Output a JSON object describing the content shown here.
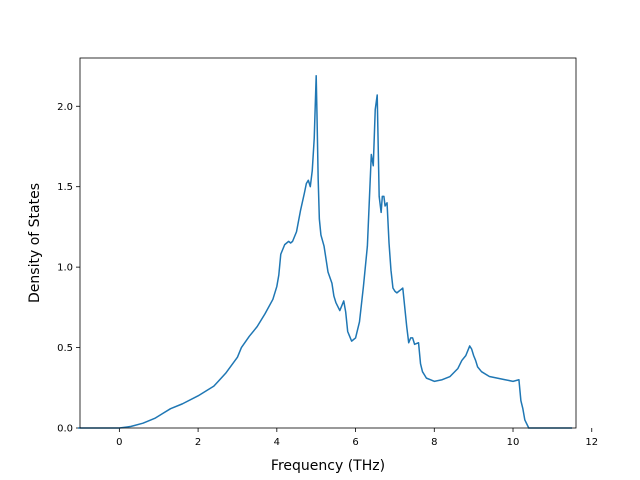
{
  "chart_data": {
    "type": "line",
    "title": "",
    "xlabel": "Frequency (THz)",
    "ylabel": "Density of States",
    "xlim": [
      -1.0,
      11.6
    ],
    "ylim": [
      0.0,
      2.3
    ],
    "xticks": [
      0,
      2,
      4,
      6,
      8,
      10,
      12
    ],
    "xtick_labels": [
      "0",
      "2",
      "4",
      "6",
      "8",
      "10",
      "12"
    ],
    "yticks": [
      0.0,
      0.5,
      1.0,
      1.5,
      2.0
    ],
    "ytick_labels": [
      "0.0",
      "0.5",
      "1.0",
      "1.5",
      "2.0"
    ],
    "grid": false,
    "legend": "none",
    "color": "#1f77b4",
    "series": [
      {
        "x": [
          -1.05,
          0.0,
          0.3,
          0.6,
          0.9,
          1.1,
          1.3,
          1.6,
          2.0,
          2.4,
          2.7,
          3.0,
          3.1,
          3.3,
          3.5,
          3.7,
          3.9,
          4.0,
          4.05,
          4.1,
          4.2,
          4.3,
          4.35,
          4.4,
          4.5,
          4.6,
          4.7,
          4.75,
          4.8,
          4.85,
          4.9,
          4.95,
          5.0,
          5.02,
          5.05,
          5.08,
          5.12,
          5.2,
          5.3,
          5.4,
          5.45,
          5.5,
          5.6,
          5.7,
          5.75,
          5.8,
          5.85,
          5.9,
          6.0,
          6.1,
          6.2,
          6.3,
          6.4,
          6.45,
          6.5,
          6.55,
          6.6,
          6.65,
          6.68,
          6.72,
          6.75,
          6.8,
          6.85,
          6.9,
          6.95,
          7.0,
          7.05,
          7.1,
          7.15,
          7.2,
          7.3,
          7.35,
          7.4,
          7.45,
          7.5,
          7.6,
          7.65,
          7.7,
          7.75,
          7.8,
          7.9,
          8.0,
          8.2,
          8.4,
          8.6,
          8.7,
          8.8,
          8.9,
          8.95,
          9.0,
          9.05,
          9.1,
          9.2,
          9.4,
          9.6,
          9.8,
          10.0,
          10.15,
          10.2,
          10.25,
          10.3,
          10.4,
          10.45,
          10.5,
          10.6,
          10.8,
          11.0,
          11.5
        ],
        "y": [
          0.0,
          0.0,
          0.01,
          0.03,
          0.06,
          0.09,
          0.12,
          0.15,
          0.2,
          0.26,
          0.34,
          0.44,
          0.5,
          0.57,
          0.63,
          0.71,
          0.8,
          0.88,
          0.95,
          1.08,
          1.14,
          1.16,
          1.15,
          1.16,
          1.22,
          1.35,
          1.46,
          1.52,
          1.54,
          1.5,
          1.6,
          1.8,
          2.19,
          1.95,
          1.55,
          1.3,
          1.2,
          1.13,
          0.97,
          0.9,
          0.82,
          0.78,
          0.73,
          0.79,
          0.72,
          0.6,
          0.57,
          0.54,
          0.56,
          0.66,
          0.88,
          1.13,
          1.7,
          1.63,
          1.98,
          2.07,
          1.44,
          1.34,
          1.44,
          1.44,
          1.38,
          1.4,
          1.15,
          0.98,
          0.87,
          0.85,
          0.84,
          0.85,
          0.86,
          0.87,
          0.63,
          0.53,
          0.56,
          0.56,
          0.52,
          0.53,
          0.4,
          0.35,
          0.33,
          0.31,
          0.3,
          0.29,
          0.3,
          0.32,
          0.37,
          0.42,
          0.45,
          0.51,
          0.49,
          0.45,
          0.42,
          0.38,
          0.35,
          0.32,
          0.31,
          0.3,
          0.29,
          0.3,
          0.17,
          0.12,
          0.05,
          0.0,
          0.0,
          0.0,
          0.0,
          0.0,
          0.0,
          0.0
        ]
      }
    ]
  }
}
